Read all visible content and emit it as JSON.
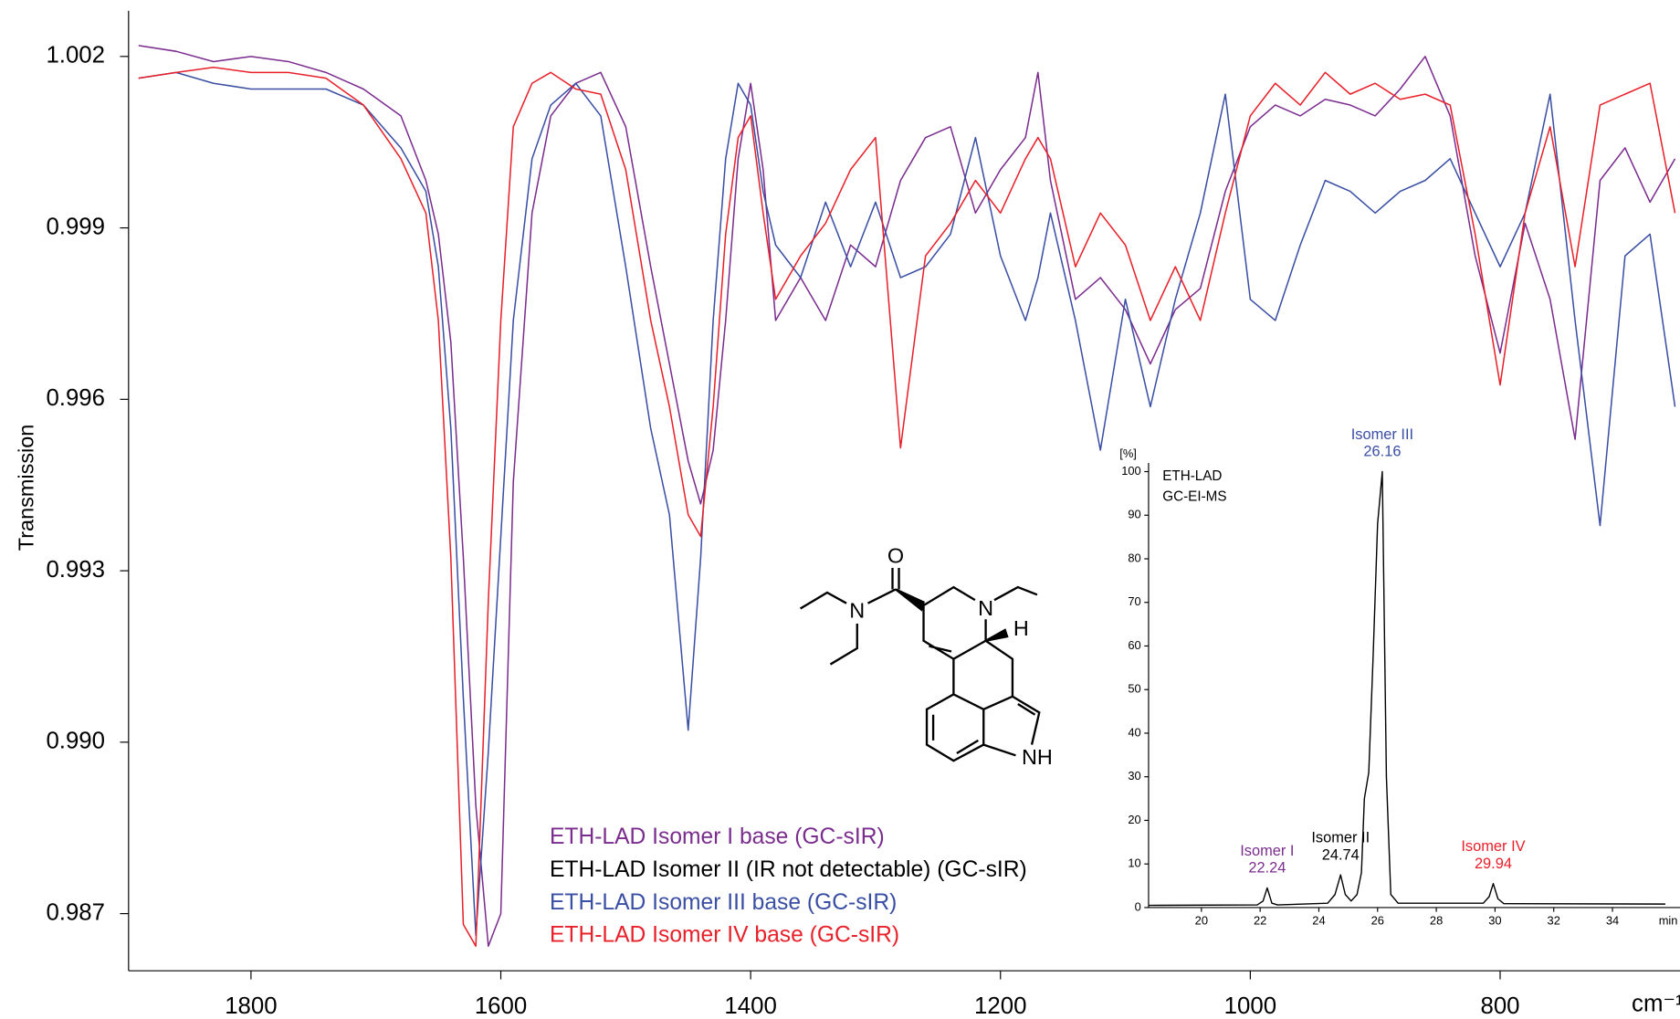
{
  "chart_data": [
    {
      "type": "line",
      "ylabel": "Transmission",
      "xlabel": "cm⁻¹",
      "xlim": [
        1898,
        656
      ],
      "ylim": [
        0.986,
        1.0028
      ],
      "xticks": [
        1800,
        1600,
        1400,
        1200,
        1000,
        800
      ],
      "yticks": [
        1.002,
        0.999,
        0.996,
        0.993,
        {
          "value": 0.99,
          "label": "0.990"
        },
        0.987
      ],
      "x": [
        1890,
        1860,
        1830,
        1800,
        1770,
        1740,
        1710,
        1680,
        1660,
        1650,
        1640,
        1630,
        1620,
        1610,
        1600,
        1590,
        1575,
        1560,
        1540,
        1520,
        1500,
        1480,
        1465,
        1450,
        1440,
        1430,
        1420,
        1410,
        1400,
        1390,
        1380,
        1360,
        1340,
        1320,
        1300,
        1280,
        1260,
        1240,
        1220,
        1200,
        1180,
        1170,
        1160,
        1140,
        1120,
        1100,
        1080,
        1060,
        1040,
        1020,
        1000,
        980,
        960,
        940,
        920,
        900,
        880,
        860,
        840,
        820,
        800,
        780,
        760,
        740,
        720,
        700,
        680,
        660
      ],
      "series": [
        {
          "name": "ETH-LAD Isomer I base (GC-sIR)",
          "color": "#7b2d8e",
          "values": [
            1.00219,
            1.00209,
            1.00191,
            1.002,
            1.00191,
            1.00172,
            1.00143,
            1.00096,
            0.99983,
            0.99889,
            0.997,
            0.99323,
            0.98889,
            0.98643,
            0.987,
            0.99455,
            0.99926,
            1.00096,
            1.00153,
            1.00172,
            1.00077,
            0.99832,
            0.99662,
            0.99492,
            0.99417,
            0.99511,
            0.99738,
            1.00021,
            1.00153,
            1.00002,
            0.99738,
            0.99813,
            0.99738,
            0.9987,
            0.99832,
            0.99983,
            1.00058,
            1.00077,
            0.99926,
            1.00002,
            1.00058,
            1.00172,
            0.99983,
            0.99775,
            0.99813,
            0.99757,
            0.99662,
            0.99757,
            0.99794,
            0.99964,
            1.00077,
            1.00115,
            1.00096,
            1.00125,
            1.00115,
            1.00096,
            1.00143,
            1.002,
            1.00096,
            0.99851,
            0.99681,
            0.99908,
            0.99775,
            0.9953,
            0.99983,
            1.0004,
            0.99945,
            1.00021
          ]
        },
        {
          "name": "ETH-LAD Isomer II (IR not detectable) (GC-sIR)",
          "color": "#000000",
          "values": [
            null,
            null,
            null,
            null,
            null,
            null,
            null,
            null,
            null,
            null,
            null,
            null,
            null,
            null,
            null,
            null,
            null,
            null,
            null,
            null,
            null,
            null,
            null,
            null,
            null,
            null,
            null,
            null,
            null,
            null,
            null,
            null,
            null,
            null,
            null,
            null,
            null,
            null,
            null,
            null,
            null,
            null,
            null,
            null,
            null,
            null,
            null,
            null,
            null,
            null,
            null,
            null,
            null,
            null,
            null,
            null,
            null,
            null,
            null,
            null,
            null,
            null,
            null,
            null,
            null,
            null,
            null,
            null
          ]
        },
        {
          "name": "ETH-LAD Isomer III base (GC-sIR)",
          "color": "#3a4fa3",
          "values": [
            1.00162,
            1.00172,
            1.00153,
            1.00143,
            1.00143,
            1.00143,
            1.00115,
            1.0004,
            0.99964,
            0.99832,
            0.99549,
            0.99077,
            0.98662,
            0.98983,
            0.9936,
            0.99738,
            1.00021,
            1.00115,
            1.00153,
            1.00096,
            0.99832,
            0.99549,
            0.99398,
            0.99021,
            0.99323,
            0.99738,
            1.00021,
            1.00153,
            1.00115,
            0.99964,
            0.9987,
            0.99813,
            0.99945,
            0.99832,
            0.99945,
            0.99813,
            0.99832,
            0.99889,
            1.00058,
            0.99851,
            0.99738,
            0.99813,
            0.99926,
            0.99738,
            0.99511,
            0.99775,
            0.99587,
            0.99775,
            0.99926,
            1.00134,
            0.99775,
            0.99738,
            0.9987,
            0.99983,
            0.99964,
            0.99926,
            0.99964,
            0.99983,
            1.00021,
            0.99926,
            0.99832,
            0.99926,
            1.00134,
            0.99738,
            0.99379,
            0.99851,
            0.99889,
            0.99587
          ]
        },
        {
          "name": "ETH-LAD Isomer IV base (GC-sIR)",
          "color": "#e8202a",
          "values": [
            1.00162,
            1.00172,
            1.00181,
            1.00172,
            1.00172,
            1.00162,
            1.00115,
            1.00021,
            0.99926,
            0.99738,
            0.99323,
            0.98681,
            0.98643,
            0.99247,
            0.99738,
            1.00077,
            1.00153,
            1.00172,
            1.00143,
            1.00134,
            1.00002,
            0.99738,
            0.99587,
            0.99398,
            0.9936,
            0.99587,
            0.99889,
            1.00058,
            1.00096,
            0.99926,
            0.99775,
            0.99851,
            0.99908,
            1.00002,
            1.00058,
            0.99515,
            0.99851,
            0.99908,
            0.99983,
            0.99926,
            1.00021,
            1.00058,
            1.00021,
            0.99832,
            0.99926,
            0.9987,
            0.99738,
            0.99832,
            0.99738,
            0.99926,
            1.00096,
            1.00153,
            1.00115,
            1.00172,
            1.00134,
            1.00153,
            1.00125,
            1.00134,
            1.00115,
            0.99889,
            0.99625,
            0.99926,
            1.00077,
            0.99832,
            1.00115,
            1.00134,
            1.00153,
            0.99926
          ]
        }
      ]
    },
    {
      "type": "line",
      "title": "ETH-LAD",
      "subtitle": "GC-EI-MS",
      "ylabel": "[%]",
      "xlabel": "min",
      "xlim": [
        18.2,
        36.3
      ],
      "ylim": [
        0,
        102
      ],
      "xticks": [
        20,
        22,
        24,
        26,
        28,
        30,
        32,
        34
      ],
      "yticks": [
        0,
        10,
        20,
        30,
        40,
        50,
        60,
        70,
        80,
        90,
        100
      ],
      "x": [
        18.2,
        21.9,
        22.1,
        22.24,
        22.4,
        22.6,
        24.3,
        24.55,
        24.74,
        24.9,
        25.1,
        25.3,
        25.45,
        25.55,
        25.7,
        25.85,
        26.0,
        26.16,
        26.3,
        26.45,
        26.7,
        29.6,
        29.8,
        29.94,
        30.1,
        30.3,
        35.8
      ],
      "series": [
        {
          "color": "#000000",
          "values": [
            0.5,
            0.6,
            1.5,
            4.5,
            1,
            0.6,
            1,
            3,
            7.5,
            3,
            1.5,
            3,
            8,
            25,
            31,
            58,
            88,
            100,
            30,
            3,
            1,
            1,
            2.5,
            5.5,
            2,
            0.9,
            0.8
          ]
        }
      ],
      "annotations": [
        {
          "label": "Isomer I",
          "x": 22.24,
          "y": 4.5,
          "color": "#7b2d8e"
        },
        {
          "label": "Isomer II",
          "x": 24.74,
          "y": 7.5,
          "color": "#000000"
        },
        {
          "label": "Isomer III",
          "x": 26.16,
          "y": 100,
          "color": "#3a4fa3"
        },
        {
          "label": "Isomer IV",
          "x": 29.94,
          "y": 5.5,
          "color": "#e8202a"
        }
      ]
    }
  ],
  "structure": {
    "labels": [
      "O",
      "N",
      "N",
      "H",
      "NH"
    ]
  }
}
